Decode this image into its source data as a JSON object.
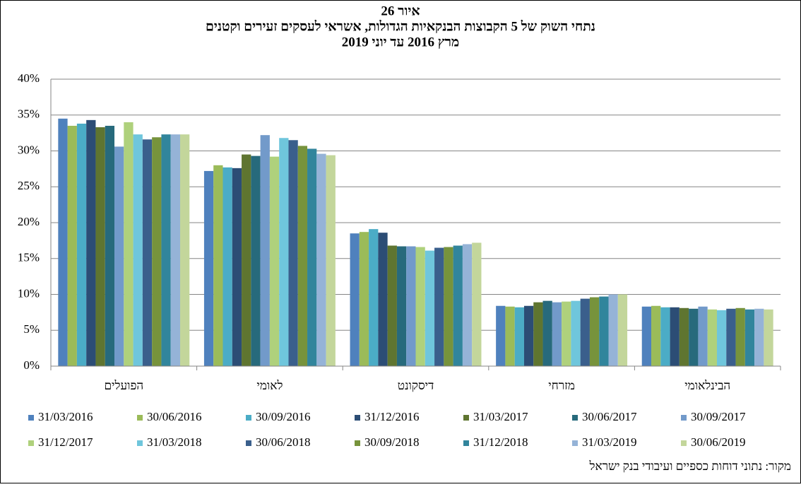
{
  "chart_data": {
    "type": "bar",
    "title": [
      "איור 26",
      "נתחי השוק של 5 הקבוצות הבנקאיות הגדולות, אשראי לעסקים זעירים וקטנים",
      "מרץ 2016 עד יוני 2019"
    ],
    "source": "מקור: נתוני דוחות כספיים ועיבודי בנק ישראל",
    "categories": [
      "הפועלים",
      "לאומי",
      "דיסקונט",
      "מזרחי",
      "הבינלאומי"
    ],
    "ylim": [
      0,
      40
    ],
    "yticks": [
      {
        "value": 0,
        "label": "0%"
      },
      {
        "value": 5,
        "label": "5%"
      },
      {
        "value": 10,
        "label": "10%"
      },
      {
        "value": 15,
        "label": "15%"
      },
      {
        "value": 20,
        "label": "20%"
      },
      {
        "value": 25,
        "label": "25%"
      },
      {
        "value": 30,
        "label": "30%"
      },
      {
        "value": 35,
        "label": "35%"
      },
      {
        "value": 40,
        "label": "40%"
      }
    ],
    "grid": true,
    "legend": "bottom",
    "series": [
      {
        "name": "31/03/2016",
        "color": "#4f81bd",
        "values": [
          34.5,
          27.2,
          18.5,
          8.4,
          8.3
        ]
      },
      {
        "name": "30/06/2016",
        "color": "#9bbb59",
        "values": [
          33.5,
          28.0,
          18.7,
          8.3,
          8.4
        ]
      },
      {
        "name": "30/09/2016",
        "color": "#4bacc6",
        "values": [
          33.8,
          27.7,
          19.1,
          8.2,
          8.2
        ]
      },
      {
        "name": "31/12/2016",
        "color": "#2c4d75",
        "values": [
          34.3,
          27.6,
          18.6,
          8.4,
          8.2
        ]
      },
      {
        "name": "31/03/2017",
        "color": "#5f7530",
        "values": [
          33.3,
          29.5,
          16.8,
          8.9,
          8.1
        ]
      },
      {
        "name": "30/06/2017",
        "color": "#276a7c",
        "values": [
          33.5,
          29.3,
          16.7,
          9.1,
          8.0
        ]
      },
      {
        "name": "30/09/2017",
        "color": "#729aca",
        "values": [
          30.6,
          32.2,
          16.7,
          8.9,
          8.3
        ]
      },
      {
        "name": "31/12/2017",
        "color": "#afd17c",
        "values": [
          34.0,
          29.2,
          16.6,
          9.0,
          7.9
        ]
      },
      {
        "name": "31/03/2018",
        "color": "#6fc6dc",
        "values": [
          32.3,
          31.8,
          16.1,
          9.1,
          7.8
        ]
      },
      {
        "name": "30/06/2018",
        "color": "#3a5f8c",
        "values": [
          31.6,
          31.5,
          16.5,
          9.4,
          8.0
        ]
      },
      {
        "name": "30/09/2018",
        "color": "#77933c",
        "values": [
          31.9,
          30.7,
          16.6,
          9.6,
          8.1
        ]
      },
      {
        "name": "31/12/2018",
        "color": "#31859c",
        "values": [
          32.3,
          30.3,
          16.8,
          9.7,
          7.9
        ]
      },
      {
        "name": "31/03/2019",
        "color": "#95b3d7",
        "values": [
          32.3,
          29.6,
          17.0,
          10.0,
          8.0
        ]
      },
      {
        "name": "30/06/2019",
        "color": "#c3d69b",
        "values": [
          32.3,
          29.4,
          17.2,
          10.0,
          7.9
        ]
      }
    ]
  }
}
